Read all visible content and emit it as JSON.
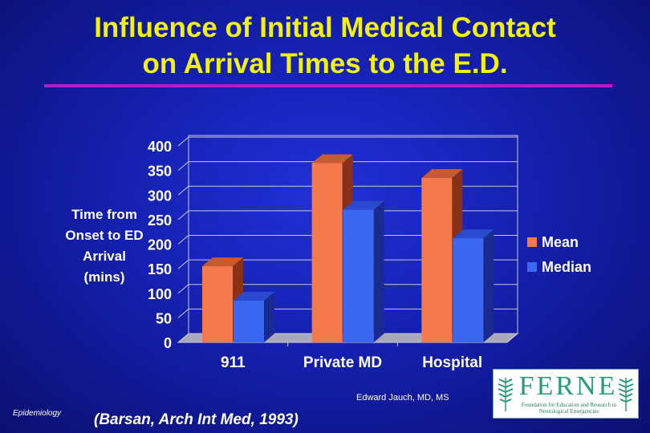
{
  "slide": {
    "title_line1": "Influence of Initial Medical Contact",
    "title_line2": "on Arrival Times to the E.D.",
    "ylabel_lines": [
      "Time from",
      "Onset to ED",
      "Arrival",
      "(mins)"
    ],
    "credit": "Edward Jauch, MD, MS",
    "section": "Epidemiology",
    "citation": "(Barsan, Arch Int Med, 1993)",
    "logo": {
      "letters": "FERNE",
      "subtitle": "Foundation for Education and Research in Neurological Emergencies"
    }
  },
  "colors": {
    "title": "#f2f20a",
    "mean": "#f47a4c",
    "median": "#3a68f2",
    "rule": "#b020c8"
  },
  "chart_data": {
    "type": "bar",
    "title": "Influence of Initial Medical Contact on Arrival Times to the E.D.",
    "categories": [
      "911",
      "Private MD",
      "Hospital"
    ],
    "series": [
      {
        "name": "Mean",
        "values": [
          155,
          365,
          335
        ]
      },
      {
        "name": "Median",
        "values": [
          85,
          270,
          212
        ]
      }
    ],
    "ylabel": "Time from Onset to ED Arrival (mins)",
    "ylim": [
      0,
      400
    ],
    "yticks": [
      0,
      50,
      100,
      150,
      200,
      250,
      300,
      350,
      400
    ],
    "legend": "right",
    "style": "3d-column",
    "grid": true
  }
}
